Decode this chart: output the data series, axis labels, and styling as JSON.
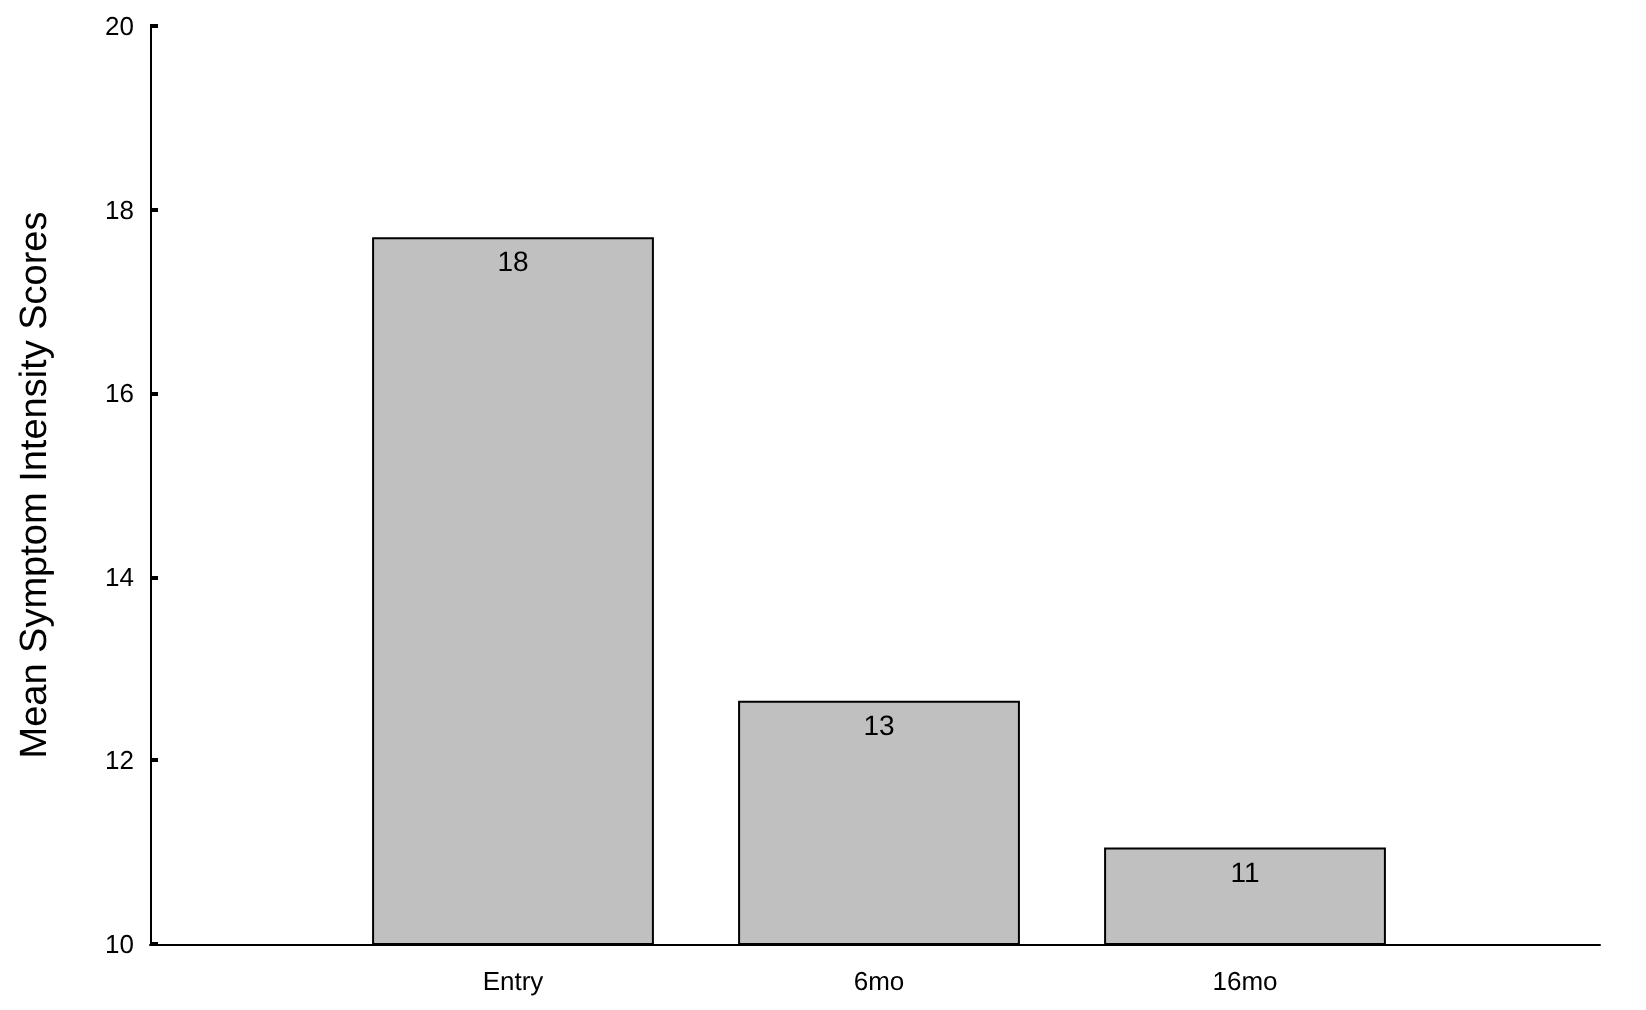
{
  "chart_data": {
    "type": "bar",
    "ylabel": "Mean Symptom Intensity Scores",
    "categories": [
      "Entry",
      "6mo",
      "16mo"
    ],
    "series": [
      {
        "color": "#c0c0c0",
        "values": [
          17.7,
          12.65,
          11.05
        ],
        "value_labels": [
          "18",
          "13",
          "11"
        ]
      }
    ],
    "ylim": [
      10,
      20
    ],
    "yticks": [
      10,
      12,
      14,
      16,
      18,
      20
    ]
  }
}
